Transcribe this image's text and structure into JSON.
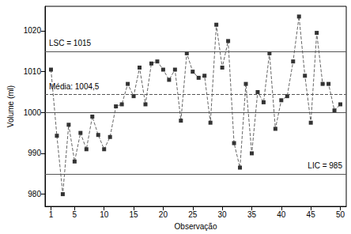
{
  "chart_data": {
    "type": "line",
    "x_label": "Observação",
    "y_label": "Volume (ml)",
    "x": [
      1,
      2,
      3,
      4,
      5,
      6,
      7,
      8,
      9,
      10,
      11,
      12,
      13,
      14,
      15,
      16,
      17,
      18,
      19,
      20,
      21,
      22,
      23,
      24,
      25,
      26,
      27,
      28,
      29,
      30,
      31,
      32,
      33,
      34,
      35,
      36,
      37,
      38,
      39,
      40,
      41,
      42,
      43,
      44,
      45,
      46,
      47,
      48,
      49,
      50
    ],
    "values": [
      1010.5,
      994.3,
      980,
      997,
      988,
      995,
      991,
      999,
      994.5,
      991,
      994,
      1001.5,
      1002,
      1007,
      1004,
      1011,
      1002,
      1012,
      1012.5,
      1010.5,
      1008,
      1010.5,
      998,
      1014.5,
      1010,
      1008.5,
      1009,
      997.5,
      1021.5,
      1011,
      1017.5,
      992.5,
      986.5,
      1007,
      990,
      1005,
      1002.5,
      1014.5,
      996,
      1003,
      1004,
      1012.5,
      1023.5,
      1009,
      997.5,
      1019.5,
      1007,
      1007,
      1000.5,
      1002
    ],
    "color": "#333333",
    "marker": "square",
    "line_style": "dashed",
    "xlim": [
      0,
      51
    ],
    "xticks": [
      1,
      5,
      10,
      15,
      20,
      25,
      30,
      35,
      40,
      45,
      50
    ],
    "ylim": [
      977,
      1026
    ],
    "yticks": [
      980,
      990,
      1000,
      1010,
      1020
    ],
    "grid": false,
    "reference_lines": [
      {
        "value": 1015,
        "label": "LSC = 1015",
        "line_style": "solid"
      },
      {
        "value": 1004.5,
        "label": "Média: 1004,5",
        "line_style": "dashed"
      },
      {
        "value": 985,
        "label": "LIC = 985",
        "line_style": "solid"
      },
      {
        "value": 1000,
        "line_style": "solid"
      }
    ]
  }
}
